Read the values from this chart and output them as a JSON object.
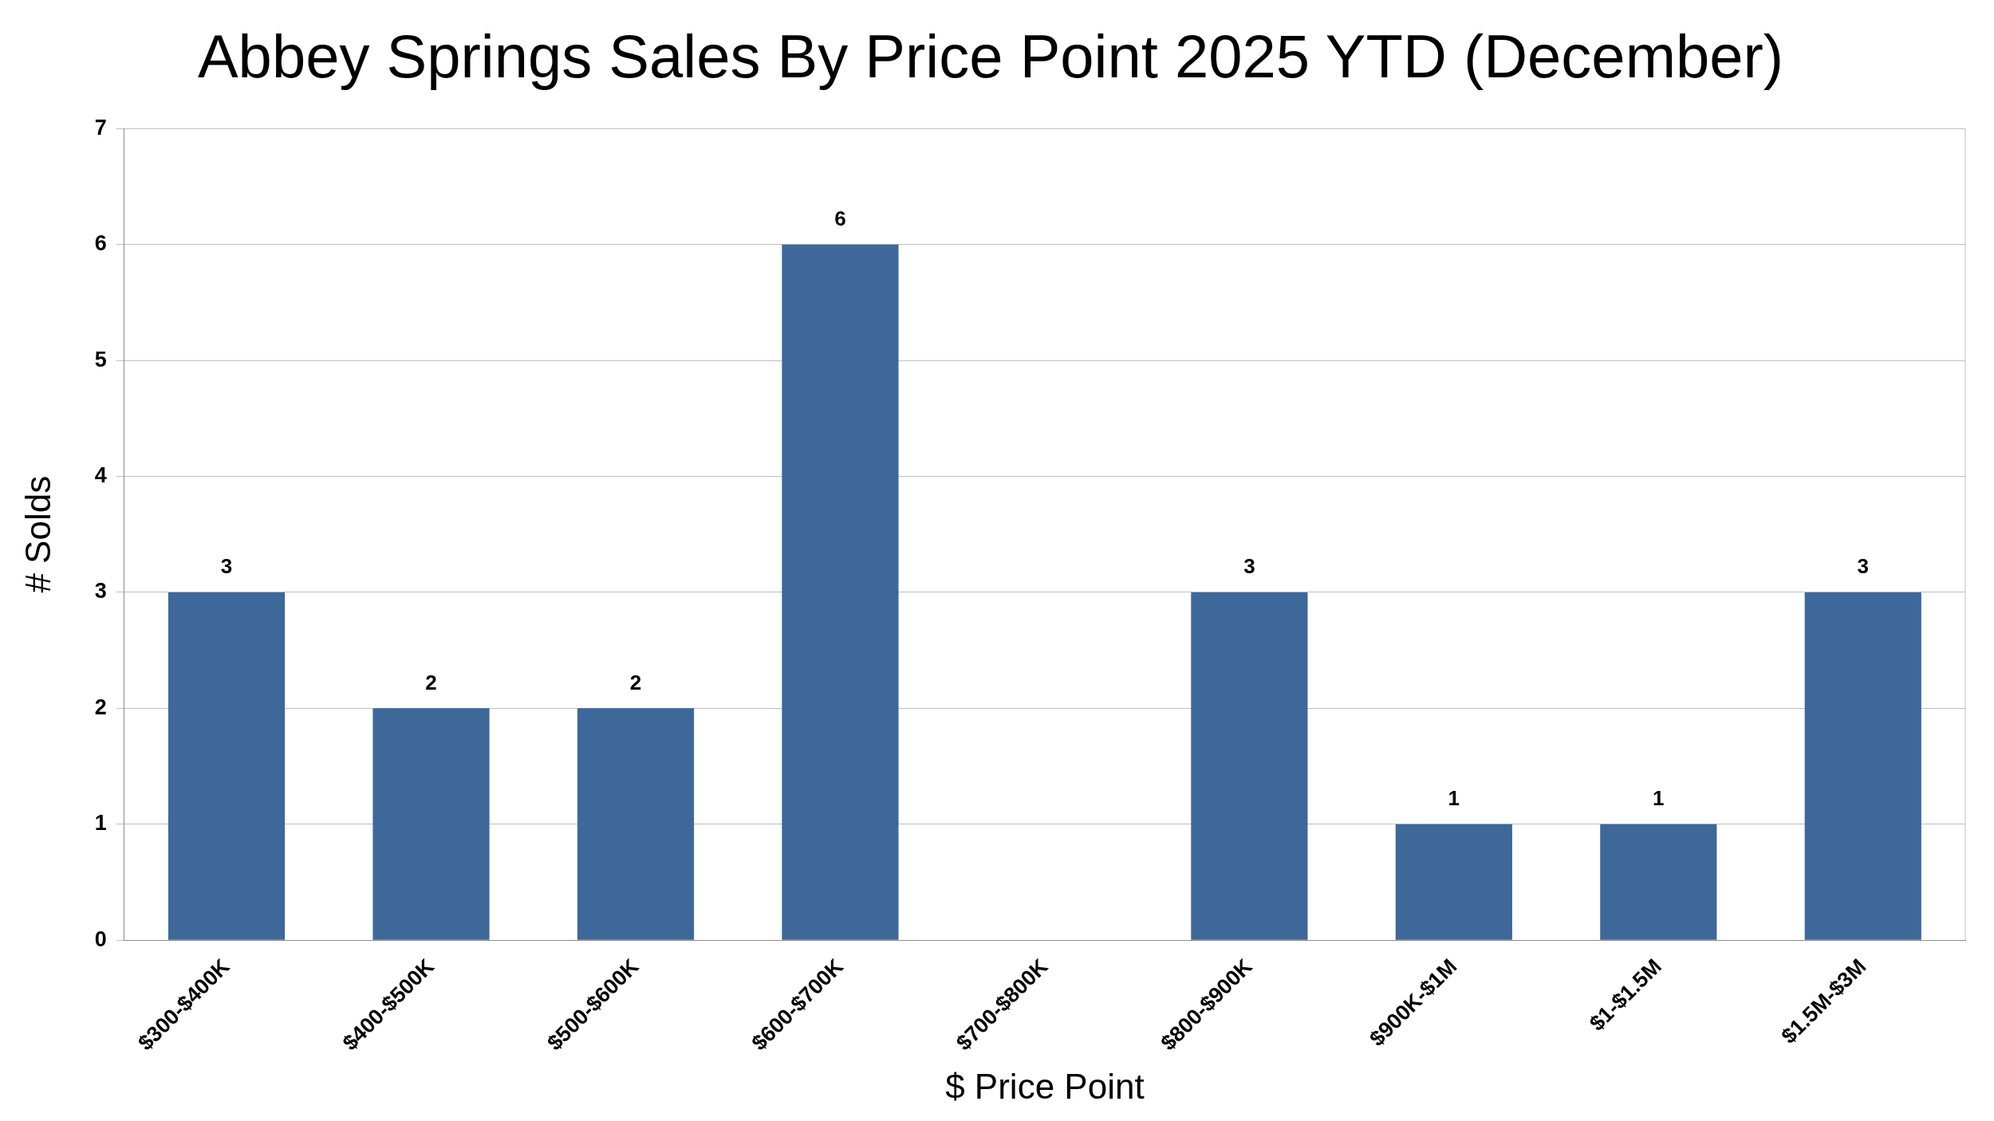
{
  "chart_data": {
    "type": "bar",
    "title": "Abbey Springs Sales By Price Point 2025 YTD (December)",
    "xlabel": "$ Price Point",
    "ylabel": "# Solds",
    "categories": [
      "$300-$400K",
      "$400-$500K",
      "$500-$600K",
      "$600-$700K",
      "$700-$800K",
      "$800-$900K",
      "$900K-$1M",
      "$1-$1.5M",
      "$1.5M-$3M"
    ],
    "values": [
      3,
      2,
      2,
      6,
      0,
      3,
      1,
      1,
      3
    ],
    "value_labels": [
      "3",
      "2",
      "2",
      "6",
      null,
      "3",
      "1",
      "1",
      "3"
    ],
    "color": "#3d6899",
    "ylim": [
      0,
      7
    ],
    "yticks": [
      0,
      1,
      2,
      3,
      4,
      5,
      6,
      7
    ],
    "grid": "y",
    "legend": false
  }
}
